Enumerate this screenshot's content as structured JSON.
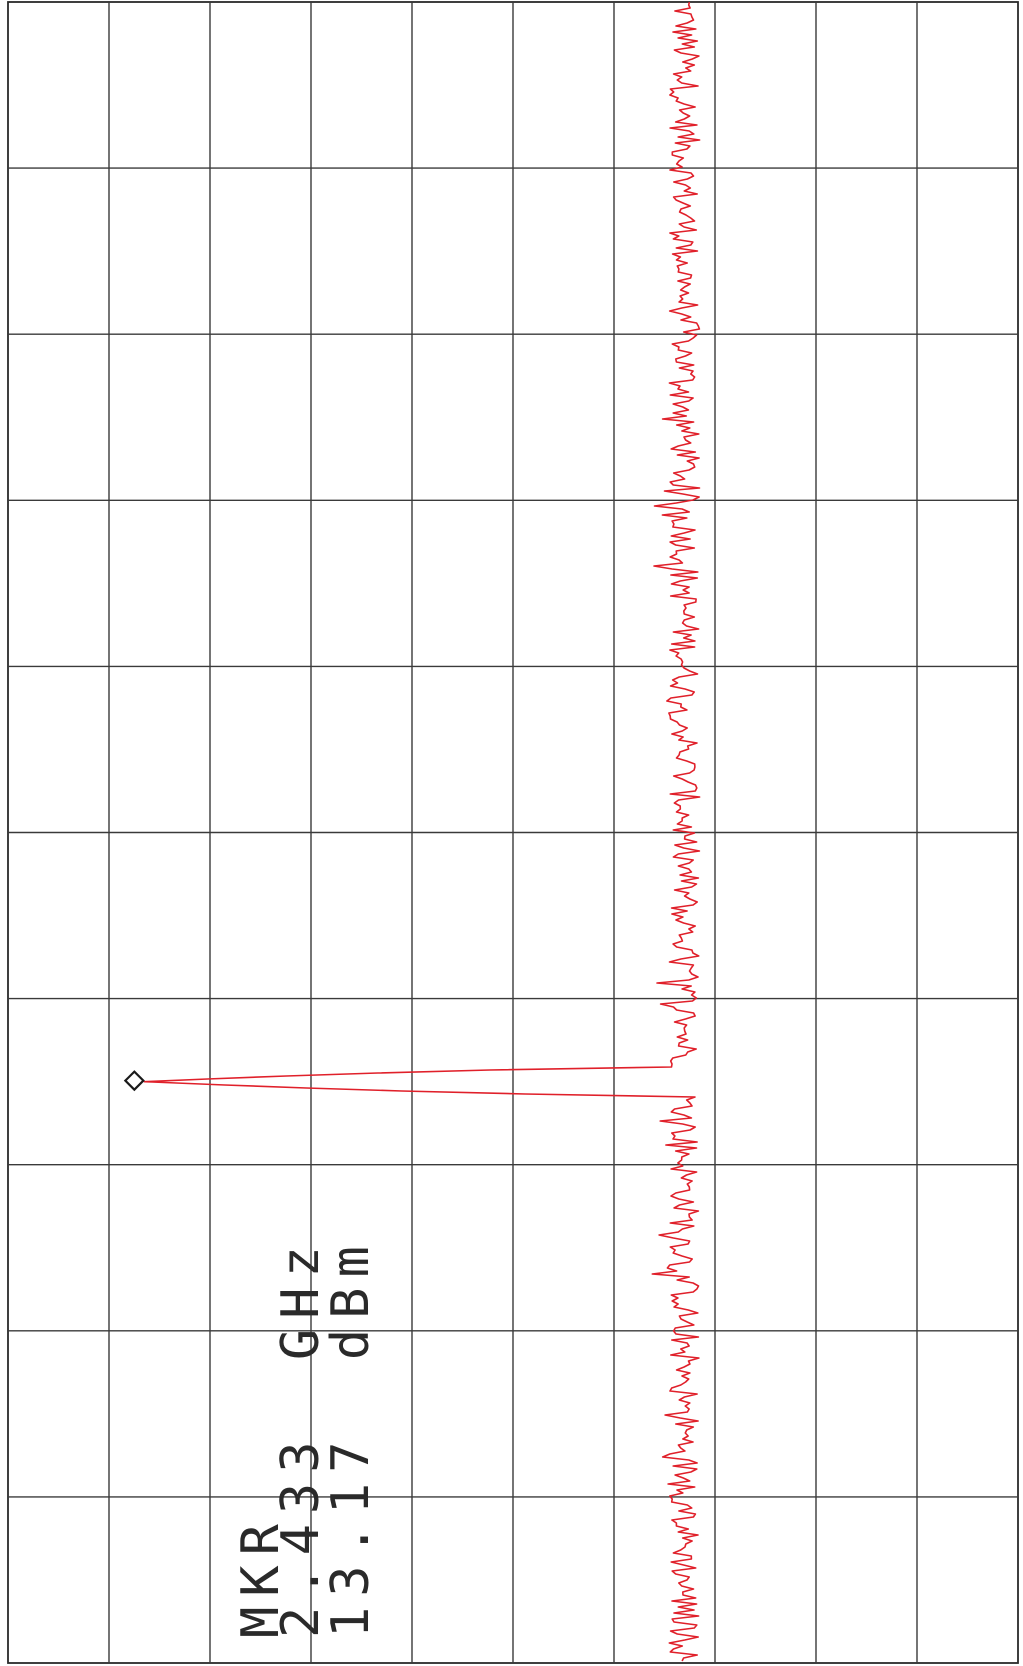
{
  "chart_data": {
    "type": "line",
    "title": "",
    "xlabel": "",
    "ylabel": "",
    "grid": true,
    "grid_divisions": {
      "x": 10,
      "y": 10
    },
    "x_range": [
      0,
      10
    ],
    "y_range": [
      0,
      10
    ],
    "noise_floor_div": 3.3,
    "series": [
      {
        "color": "#e0202a",
        "peak": {
          "x_div": 6.5,
          "y_div": 8.65
        }
      }
    ],
    "marker": {
      "symbol": "diamond",
      "label": "MKR",
      "frequency": "2.433",
      "frequency_unit": "GHz",
      "amplitude": "13.17",
      "amplitude_unit": "dBm"
    }
  }
}
